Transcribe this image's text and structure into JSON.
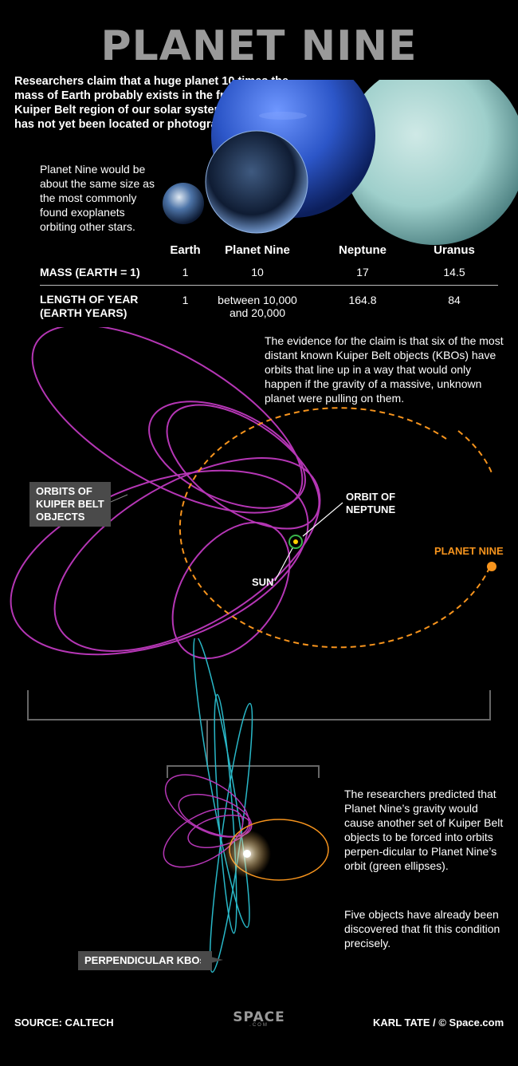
{
  "title": "PLANET NINE",
  "intro": "Researchers claim that a huge planet 10 times the mass of Earth probably exists in the frozen Kuiper Belt region of our solar system. The planet has not yet been located or photographed.",
  "size_note": "Planet Nine would be about the same size as the most commonly found exoplanets orbiting other stars.",
  "table": {
    "headers": [
      "Earth",
      "Planet Nine",
      "Neptune",
      "Uranus"
    ],
    "rows": [
      {
        "label": "MASS (EARTH = 1)",
        "values": [
          "1",
          "10",
          "17",
          "14.5"
        ]
      },
      {
        "label_line1": "LENGTH OF YEAR",
        "label_line2": "(EARTH YEARS)",
        "values": [
          "1",
          "between 10,000",
          "164.8",
          "84"
        ],
        "value_line2": "and 20,000"
      }
    ]
  },
  "evidence": "The evidence for the claim is that six of the most distant known Kuiper Belt objects (KBOs) have orbits that line up in a way that would only happen if the gravity of a massive, unknown planet were pulling on them.",
  "labels": {
    "kbo_orbits_1": "ORBITS OF",
    "kbo_orbits_2": "KUIPER BELT",
    "kbo_orbits_3": "OBJECTS",
    "orbit_neptune_1": "ORBIT OF",
    "orbit_neptune_2": "NEPTUNE",
    "sun": "SUN",
    "planet_nine": "PLANET NINE",
    "perpendicular": "PERPENDICULAR KBOs"
  },
  "prediction": "The researchers predicted that Planet Nine’s gravity would cause another set of Kuiper Belt objects to be forced into orbits perpen-dicular to Planet Nine’s orbit (green ellipses).",
  "discovered": "Five objects have already been discovered that fit this condition precisely.",
  "footer": {
    "source": "SOURCE: CALTECH",
    "credit": "KARL TATE / © Space.com",
    "logo": "SPACE",
    "logo_sub": ".COM"
  },
  "colors": {
    "kbo_orbit": "#b536b5",
    "planet_nine_orbit": "#f7941d",
    "neptune_orbit": "#39b54a",
    "perpendicular_orbit": "#29b8c8",
    "title": "#9a9a9a"
  }
}
